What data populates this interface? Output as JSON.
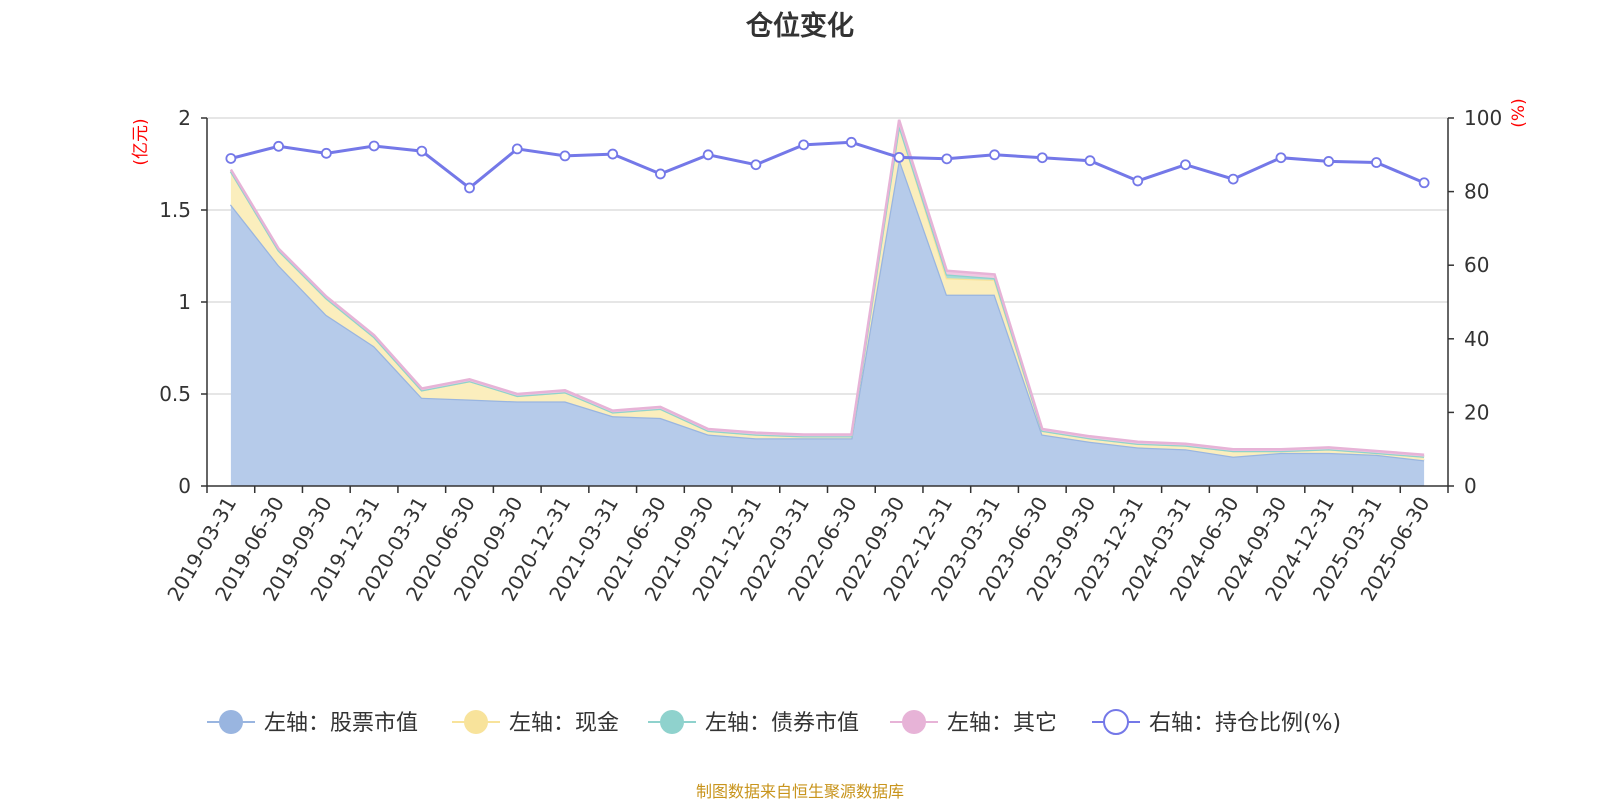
{
  "title": "仓位变化",
  "source": "制图数据来自恒生聚源数据库",
  "chart_data": {
    "type": "area",
    "categories": [
      "2019-03-31",
      "2019-06-30",
      "2019-09-30",
      "2019-12-31",
      "2020-03-31",
      "2020-06-30",
      "2020-09-30",
      "2020-12-31",
      "2021-03-31",
      "2021-06-30",
      "2021-09-30",
      "2021-12-31",
      "2022-03-31",
      "2022-06-30",
      "2022-09-30",
      "2022-12-31",
      "2023-03-31",
      "2023-06-30",
      "2023-09-30",
      "2023-12-31",
      "2024-03-31",
      "2024-06-30",
      "2024-09-30",
      "2024-12-31",
      "2025-03-31",
      "2025-06-30"
    ],
    "left_axis": {
      "unit": "(亿元)",
      "ylim": [
        0,
        2
      ],
      "ticks": [
        "0",
        "0.5",
        "1",
        "1.5",
        "2"
      ]
    },
    "right_axis": {
      "unit": "(%)",
      "ylim": [
        0,
        100
      ],
      "ticks": [
        "0",
        "20",
        "40",
        "60",
        "80",
        "100"
      ]
    },
    "grid": true,
    "legend_position": "bottom",
    "series": [
      {
        "name": "左轴：股票市值",
        "axis": "left",
        "stacked": true,
        "fill": "#b6cbea",
        "stroke": "#99b5e0",
        "values": [
          1.53,
          1.2,
          0.93,
          0.76,
          0.48,
          0.47,
          0.46,
          0.46,
          0.38,
          0.37,
          0.28,
          0.26,
          0.26,
          0.26,
          1.78,
          1.04,
          1.04,
          0.28,
          0.24,
          0.21,
          0.2,
          0.16,
          0.18,
          0.18,
          0.17,
          0.14
        ]
      },
      {
        "name": "左轴：现金",
        "axis": "left",
        "stacked": true,
        "fill": "#fbeebd",
        "stroke": "#f8e39b",
        "values": [
          0.18,
          0.08,
          0.09,
          0.05,
          0.04,
          0.1,
          0.03,
          0.05,
          0.02,
          0.05,
          0.02,
          0.02,
          0.01,
          0.01,
          0.18,
          0.09,
          0.08,
          0.02,
          0.02,
          0.02,
          0.02,
          0.03,
          0.01,
          0.02,
          0.01,
          0.02
        ]
      },
      {
        "name": "左轴：债券市值",
        "axis": "left",
        "stacked": true,
        "fill": "#a7dcd8",
        "stroke": "#8fd2cd",
        "values": [
          0,
          0,
          0,
          0,
          0,
          0,
          0,
          0,
          0,
          0,
          0,
          0,
          0,
          0,
          0,
          0.02,
          0.01,
          0,
          0,
          0,
          0,
          0,
          0,
          0,
          0,
          0
        ]
      },
      {
        "name": "左轴：其它",
        "axis": "left",
        "stacked": true,
        "fill": "#f1c8e2",
        "stroke": "#e7b3d7",
        "values": [
          0.01,
          0.01,
          0.01,
          0.01,
          0.01,
          0.01,
          0.01,
          0.01,
          0.01,
          0.01,
          0.01,
          0.01,
          0.01,
          0.01,
          0.03,
          0.02,
          0.02,
          0.01,
          0.01,
          0.01,
          0.01,
          0.01,
          0.01,
          0.01,
          0.01,
          0.01
        ]
      },
      {
        "name": "右轴：持仓比例(%)",
        "axis": "right",
        "type": "line",
        "stroke": "#7478e8",
        "values": [
          89.0,
          92.3,
          90.4,
          92.4,
          91.0,
          81.0,
          91.6,
          89.7,
          90.2,
          84.8,
          90.0,
          87.3,
          92.7,
          93.4,
          89.3,
          88.9,
          90.0,
          89.2,
          88.4,
          82.9,
          87.3,
          83.4,
          89.2,
          88.2,
          87.9,
          82.4
        ]
      }
    ]
  }
}
